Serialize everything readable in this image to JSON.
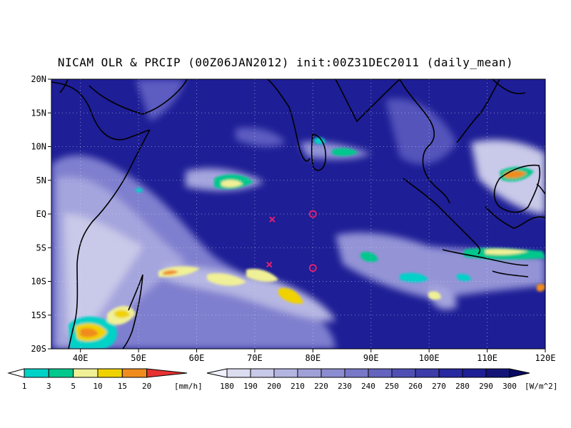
{
  "title": "NICAM OLR & PRCIP (00Z06JAN2012) init:00Z31DEC2011 (daily_mean)",
  "map": {
    "lon_range": [
      35,
      120
    ],
    "lat_range": [
      -20,
      20
    ],
    "lat_ticks": [
      "20N",
      "15N",
      "10N",
      "5N",
      "EQ",
      "5S",
      "10S",
      "15S",
      "20S"
    ],
    "lon_ticks": [
      "40E",
      "50E",
      "60E",
      "70E",
      "80E",
      "90E",
      "100E",
      "110E",
      "120E"
    ],
    "grid": "dotted",
    "background_color": "#1e1e96",
    "markers": [
      {
        "type": "circle",
        "lon": 80,
        "lat": 0,
        "color": "#e0206e"
      },
      {
        "type": "circle",
        "lon": 80,
        "lat": -8,
        "color": "#e0206e"
      },
      {
        "type": "cross",
        "lon": 73,
        "lat": -0.8,
        "color": "#e0206e"
      },
      {
        "type": "cross",
        "lon": 72.5,
        "lat": -7.5,
        "color": "#e0206e"
      }
    ]
  },
  "precip_colorbar": {
    "unit": "[mm/h]",
    "ticks": [
      "1",
      "3",
      "5",
      "10",
      "15",
      "20"
    ],
    "colors": [
      "#00d2c8",
      "#00c88c",
      "#f0f096",
      "#f0d200",
      "#f08c1e",
      "#e63232"
    ]
  },
  "olr_colorbar": {
    "unit": "[W/m^2]",
    "ticks": [
      "180",
      "190",
      "200",
      "210",
      "220",
      "230",
      "240",
      "250",
      "260",
      "270",
      "280",
      "290",
      "300"
    ],
    "colors": [
      "#f0f0fa",
      "#dcdcf0",
      "#c8c8e8",
      "#b4b4e0",
      "#a0a0d8",
      "#8c8cd0",
      "#7878c8",
      "#6464be",
      "#5050b4",
      "#3c3caa",
      "#2828a0",
      "#1e1e96",
      "#141478",
      "#0a0a64"
    ]
  }
}
